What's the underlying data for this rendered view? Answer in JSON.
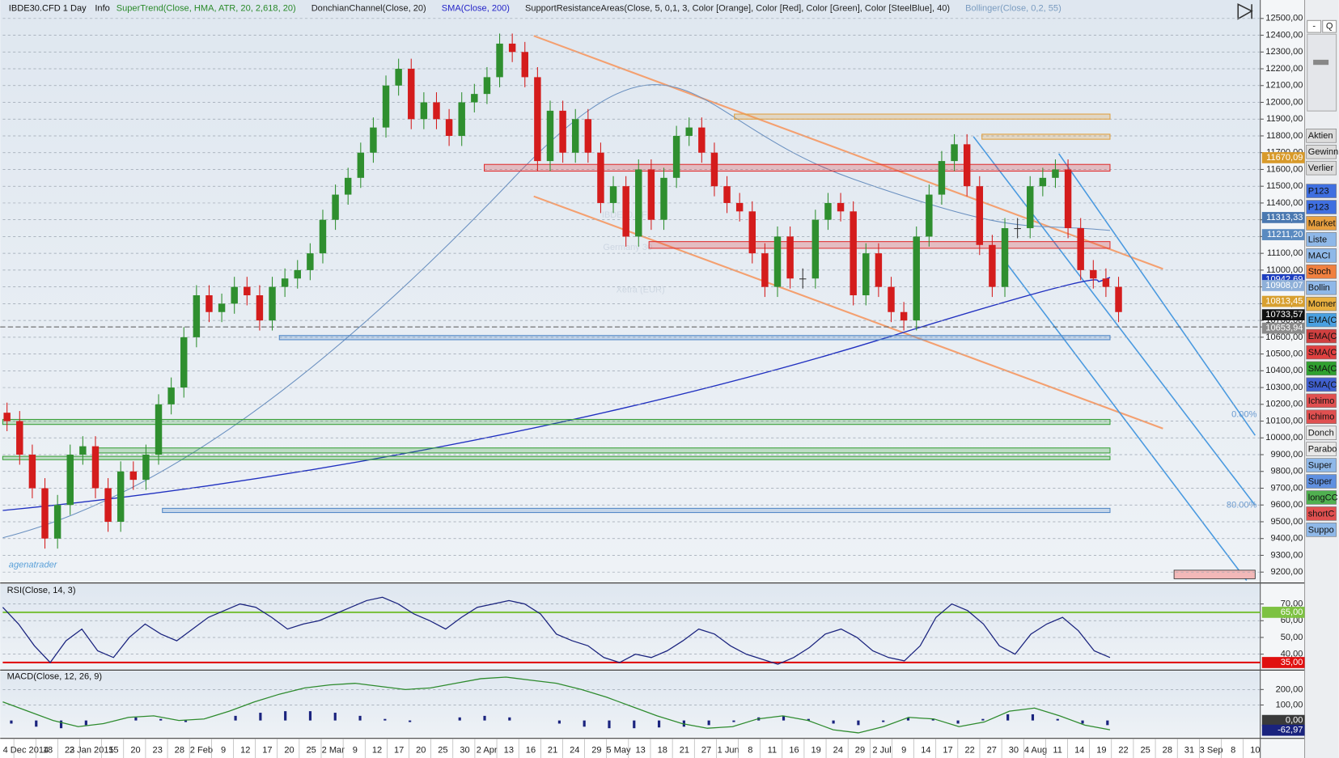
{
  "header": {
    "symbol": "IBDE30.CFD 1 Day",
    "info": "Info",
    "indicators": [
      {
        "text": "SuperTrend(Close, HMA, ATR, 20, 2,618, 20)",
        "color": "#2a8a2a"
      },
      {
        "text": "DonchianChannel(Close, 20)",
        "color": "#222222"
      },
      {
        "text": "SMA(Close, 200)",
        "color": "#2424c8"
      },
      {
        "text": "SupportResistanceAreas(Close, 5, 0,1, 3, Color [Orange], Color [Red], Color [Green], Color [SteelBlue], 40)",
        "color": "#222222"
      },
      {
        "text": "Bollinger(Close, 0,2, 55)",
        "color": "#7a9cc0"
      }
    ]
  },
  "watermark": {
    "symbol": "IBDE30.CFD",
    "country": "Germany 30",
    "exchange": "Xetra (EUR)"
  },
  "logo": "agenatrader",
  "chart_data": [
    {
      "type": "candlestick",
      "open": [
        10150,
        10100,
        9900,
        9700,
        9400,
        9600,
        9900,
        9950,
        9700,
        9500,
        9800,
        9750,
        9900,
        10200,
        10300,
        10600,
        10850,
        10750,
        10800,
        10900,
        10850,
        10700,
        10900,
        10950,
        11000,
        11100,
        11300,
        11450,
        11550,
        11700,
        11850,
        12100,
        12200,
        11900,
        12000,
        11900,
        11800,
        12000,
        12050,
        12150,
        12350,
        12300,
        12150,
        11650,
        11950,
        11700,
        11900,
        11700,
        11400,
        11500,
        11200,
        11600,
        11300,
        11550,
        11800,
        11850,
        11700,
        11500,
        11400,
        11350,
        11100,
        10900,
        11200,
        10950,
        10950,
        11300,
        11400,
        11350,
        10850,
        11100,
        10900,
        10750,
        10700,
        11200,
        11450,
        11650,
        11750,
        11500,
        11150,
        10900,
        11250,
        11250,
        11500,
        11550,
        11600,
        11250,
        11000,
        10950,
        10900
      ],
      "high": [
        10210,
        10160,
        9960,
        9760,
        9660,
        9960,
        10010,
        10010,
        9760,
        9860,
        9860,
        9960,
        10260,
        10360,
        10660,
        10910,
        10910,
        10860,
        10960,
        10960,
        10910,
        10960,
        11010,
        11060,
        11160,
        11360,
        11510,
        11610,
        11760,
        11910,
        12160,
        12260,
        12260,
        12060,
        12060,
        11960,
        12060,
        12110,
        12210,
        12410,
        12410,
        12360,
        12210,
        12010,
        12010,
        11960,
        11960,
        11760,
        11560,
        11560,
        11660,
        11660,
        11610,
        11860,
        11910,
        11910,
        11760,
        11560,
        11460,
        11410,
        11160,
        11260,
        11260,
        11010,
        11360,
        11460,
        11460,
        11410,
        11160,
        11160,
        10960,
        10810,
        11260,
        11510,
        11710,
        11810,
        11810,
        11560,
        11210,
        11310,
        11310,
        11560,
        11610,
        11660,
        11660,
        11310,
        11060,
        11010,
        10960
      ],
      "low": [
        10040,
        9840,
        9640,
        9340,
        9340,
        9540,
        9840,
        9640,
        9440,
        9440,
        9690,
        9690,
        9840,
        10140,
        10240,
        10540,
        10690,
        10690,
        10740,
        10790,
        10640,
        10640,
        10840,
        10890,
        10940,
        11040,
        11240,
        11390,
        11490,
        11640,
        11790,
        12040,
        11840,
        11840,
        11840,
        11740,
        11740,
        11940,
        11990,
        12090,
        12240,
        12090,
        11590,
        11590,
        11640,
        11640,
        11640,
        11340,
        11340,
        11140,
        11140,
        11240,
        11240,
        11490,
        11740,
        11640,
        11440,
        11340,
        11290,
        11040,
        10840,
        10840,
        10890,
        10890,
        10890,
        11240,
        11290,
        10790,
        10790,
        10840,
        10690,
        10640,
        10640,
        11140,
        11390,
        11590,
        11440,
        11090,
        10840,
        10840,
        11190,
        11190,
        11440,
        11490,
        11190,
        10940,
        10890,
        10840,
        10690
      ],
      "close": [
        10100,
        9900,
        9700,
        9400,
        9600,
        9900,
        9950,
        9700,
        9500,
        9800,
        9750,
        9900,
        10200,
        10300,
        10600,
        10850,
        10750,
        10800,
        10900,
        10850,
        10700,
        10900,
        10950,
        11000,
        11100,
        11300,
        11450,
        11550,
        11700,
        11850,
        12100,
        12200,
        11900,
        12000,
        11900,
        11800,
        12000,
        12050,
        12150,
        12350,
        12300,
        12150,
        11650,
        11950,
        11700,
        11900,
        11700,
        11400,
        11500,
        11200,
        11600,
        11300,
        11550,
        11800,
        11850,
        11700,
        11500,
        11400,
        11350,
        11100,
        10900,
        11200,
        10950,
        10950,
        11300,
        11400,
        11350,
        10850,
        11100,
        10900,
        10750,
        10700,
        11200,
        11450,
        11650,
        11750,
        11500,
        11150,
        10900,
        11250,
        11250,
        11500,
        11550,
        11600,
        11250,
        11000,
        10950,
        10900,
        10750
      ],
      "up_color": "#2f8f2f",
      "down_color": "#d41c1c",
      "ylim": [
        9140,
        12610
      ],
      "yticks": [
        {
          "value": 9200,
          "label": "9200,00"
        },
        {
          "value": 9300,
          "label": "9300,00"
        },
        {
          "value": 9400,
          "label": "9400,00"
        },
        {
          "value": 9500,
          "label": "9500,00"
        },
        {
          "value": 9600,
          "label": "9600,00"
        },
        {
          "value": 9700,
          "label": "9700,00"
        },
        {
          "value": 9800,
          "label": "9800,00"
        },
        {
          "value": 9900,
          "label": "9900,00"
        },
        {
          "value": 10000,
          "label": "10000,00"
        },
        {
          "value": 10100,
          "label": "10100,00"
        },
        {
          "value": 10200,
          "label": "10200,00"
        },
        {
          "value": 10300,
          "label": "10300,00"
        },
        {
          "value": 10400,
          "label": "10400,00"
        },
        {
          "value": 10500,
          "label": "10500,00"
        },
        {
          "value": 10600,
          "label": "10600,00"
        },
        {
          "value": 10700,
          "label": "10700,00"
        },
        {
          "value": 10800,
          "label": "10800,00"
        },
        {
          "value": 10900,
          "label": "10900,00"
        },
        {
          "value": 11000,
          "label": "11000,00"
        },
        {
          "value": 11100,
          "label": "11100,00"
        },
        {
          "value": 11200,
          "label": "11200,00"
        },
        {
          "value": 11300,
          "label": "11300,00"
        },
        {
          "value": 11400,
          "label": "11400,00"
        },
        {
          "value": 11500,
          "label": "11500,00"
        },
        {
          "value": 11600,
          "label": "11600,00"
        },
        {
          "value": 11700,
          "label": "11700,00"
        },
        {
          "value": 11800,
          "label": "11800,00"
        },
        {
          "value": 11900,
          "label": "11900,00"
        },
        {
          "value": 12000,
          "label": "12000,00"
        },
        {
          "value": 12100,
          "label": "12100,00"
        },
        {
          "value": 12200,
          "label": "12200,00"
        },
        {
          "value": 12300,
          "label": "12300,00"
        },
        {
          "value": 12400,
          "label": "12400,00"
        },
        {
          "value": 12500,
          "label": "12500,00"
        }
      ],
      "xticks": [
        "4 Dec 2014",
        "18",
        "23",
        "2 Jan 2015",
        "15",
        "20",
        "23",
        "28",
        "2 Feb",
        "9",
        "12",
        "17",
        "20",
        "25",
        "2 Mar",
        "9",
        "12",
        "17",
        "20",
        "25",
        "30",
        "2 Apr",
        "13",
        "16",
        "21",
        "24",
        "29",
        "5 May",
        "13",
        "18",
        "21",
        "27",
        "1 Jun",
        "8",
        "11",
        "16",
        "19",
        "24",
        "29",
        "2 Jul",
        "9",
        "14",
        "17",
        "22",
        "27",
        "30",
        "4 Aug",
        "11",
        "14",
        "19",
        "22",
        "25",
        "28",
        "31",
        "3 Sep",
        "8",
        "10"
      ],
      "grid": true,
      "zones": [
        {
          "low": 11590,
          "high": 11630,
          "color": "#e03030"
        },
        {
          "low": 11130,
          "high": 11170,
          "color": "#e03030"
        },
        {
          "low": 10080,
          "high": 10110,
          "color": "#3aa03a"
        },
        {
          "low": 9910,
          "high": 9940,
          "color": "#3aa03a"
        },
        {
          "low": 9870,
          "high": 9890,
          "color": "#3aa03a"
        },
        {
          "low": 10585,
          "high": 10610,
          "color": "#4f86c6"
        },
        {
          "low": 9555,
          "high": 9580,
          "color": "#4f86c6"
        },
        {
          "low": 11900,
          "high": 11930,
          "color": "#e0a040"
        },
        {
          "low": 11780,
          "high": 11810,
          "color": "#e0a040"
        }
      ],
      "price_tags": [
        {
          "value": 11670.09,
          "label": "11670,09",
          "color": "#d89a2a"
        },
        {
          "value": 11313.33,
          "label": "11313,33",
          "color": "#4a78b0"
        },
        {
          "value": 11211.2,
          "label": "11211,20",
          "color": "#5a8ac0"
        },
        {
          "value": 10942.69,
          "label": "10942,69",
          "color": "#1f3fbf"
        },
        {
          "value": 10908.07,
          "label": "10908,07",
          "color": "#8fb0d8"
        },
        {
          "value": 10813.45,
          "label": "10813,45",
          "color": "#d8a030"
        },
        {
          "value": 10733.57,
          "label": "10733,57",
          "color": "#111111"
        },
        {
          "value": 10653.94,
          "label": "10653,94",
          "color": "#8a8a8a"
        }
      ],
      "annotations": [
        "0.00%",
        "80.00%"
      ]
    },
    {
      "type": "line",
      "title": "RSI(Close, 14, 3)",
      "series": [
        {
          "color": "#1a237e",
          "values": [
            68,
            58,
            45,
            35,
            48,
            55,
            42,
            38,
            50,
            58,
            52,
            48,
            55,
            62,
            66,
            70,
            68,
            62,
            55,
            58,
            60,
            64,
            68,
            72,
            74,
            70,
            64,
            60,
            55,
            62,
            68,
            70,
            72,
            70,
            64,
            52,
            48,
            45,
            38,
            35,
            40,
            38,
            42,
            48,
            55,
            52,
            45,
            40,
            37,
            34,
            38,
            44,
            52,
            55,
            50,
            42,
            38,
            36,
            45,
            62,
            70,
            66,
            58,
            45,
            40,
            52,
            58,
            62,
            54,
            42,
            38
          ]
        }
      ],
      "ylim": [
        31,
        82
      ],
      "yticks": [
        {
          "value": 40,
          "label": "40,00"
        },
        {
          "value": 50,
          "label": "50,00"
        },
        {
          "value": 60,
          "label": "60,00"
        },
        {
          "value": 70,
          "label": "70,00"
        }
      ],
      "levels": [
        {
          "value": 65,
          "label": "65,00",
          "color": "#7dc242"
        },
        {
          "value": 35,
          "label": "35,00",
          "color": "#e01010"
        }
      ]
    },
    {
      "type": "macd",
      "title": "MACD(Close, 12, 26, 9)",
      "series": [
        {
          "color": "#2e8b2e",
          "values": [
            120,
            60,
            0,
            -40,
            -20,
            20,
            30,
            0,
            10,
            60,
            120,
            170,
            210,
            230,
            240,
            220,
            200,
            210,
            240,
            270,
            280,
            260,
            240,
            200,
            150,
            90,
            30,
            -20,
            -50,
            -40,
            10,
            30,
            0,
            -60,
            -80,
            -40,
            20,
            10,
            -40,
            -10,
            60,
            80,
            30,
            -30,
            -60
          ]
        }
      ],
      "histogram": {
        "color": "#1a237e",
        "values": [
          -20,
          -40,
          -50,
          -30,
          0,
          20,
          10,
          -10,
          0,
          30,
          50,
          60,
          60,
          50,
          30,
          10,
          -10,
          0,
          20,
          30,
          20,
          0,
          -20,
          -40,
          -50,
          -50,
          -45,
          -40,
          -30,
          -10,
          20,
          30,
          10,
          -20,
          -30,
          -10,
          20,
          10,
          -20,
          10,
          40,
          40,
          10,
          -20,
          -30
        ]
      },
      "ylim": [
        -110,
        320
      ],
      "yticks": [
        {
          "value": 100,
          "label": "100,00"
        },
        {
          "value": 200,
          "label": "200,00"
        }
      ],
      "price_tags": [
        {
          "value": 0,
          "label": "0,00",
          "color": "#3a3a3a"
        },
        {
          "value": -62.97,
          "label": "-62,97",
          "color": "#1a237e"
        }
      ]
    }
  ],
  "toolbar": {
    "top": [
      "-",
      "Q"
    ],
    "buttons": [
      {
        "label": "Aktien",
        "color": "#dcdcdc"
      },
      {
        "label": "Gewinn",
        "color": "#dcdcdc"
      },
      {
        "label": "Verlier",
        "color": "#dcdcdc"
      },
      {
        "label": "P123",
        "color": "#3f6fe0"
      },
      {
        "label": "P123",
        "color": "#3f6fe0"
      },
      {
        "label": "Market",
        "color": "#e8a040"
      },
      {
        "label": "Liste",
        "color": "#8fb8e8"
      },
      {
        "label": "MACI",
        "color": "#8fb8e8"
      },
      {
        "label": "Stoch",
        "color": "#f08040"
      },
      {
        "label": "Bollin",
        "color": "#8fb8e8"
      },
      {
        "label": "Momer",
        "color": "#e8b040"
      },
      {
        "label": "EMA(C",
        "color": "#4aa0e0"
      },
      {
        "label": "EMA(C",
        "color": "#d04040"
      },
      {
        "label": "SMA(C",
        "color": "#e04040"
      },
      {
        "label": "SMA(C",
        "color": "#30a030"
      },
      {
        "label": "SMA(C",
        "color": "#4060d0"
      },
      {
        "label": "Ichimo",
        "color": "#e05050"
      },
      {
        "label": "Ichimo",
        "color": "#e05050"
      },
      {
        "label": "Donch",
        "color": "#e8e8e8"
      },
      {
        "label": "Parabo",
        "color": "#e8e8e8"
      },
      {
        "label": "Super",
        "color": "#8fb8e8"
      },
      {
        "label": "Super",
        "color": "#6090e0"
      },
      {
        "label": "longCC",
        "color": "#50b050"
      },
      {
        "label": "shortC",
        "color": "#e05050"
      },
      {
        "label": "Suppo",
        "color": "#8fb8e8"
      }
    ]
  }
}
